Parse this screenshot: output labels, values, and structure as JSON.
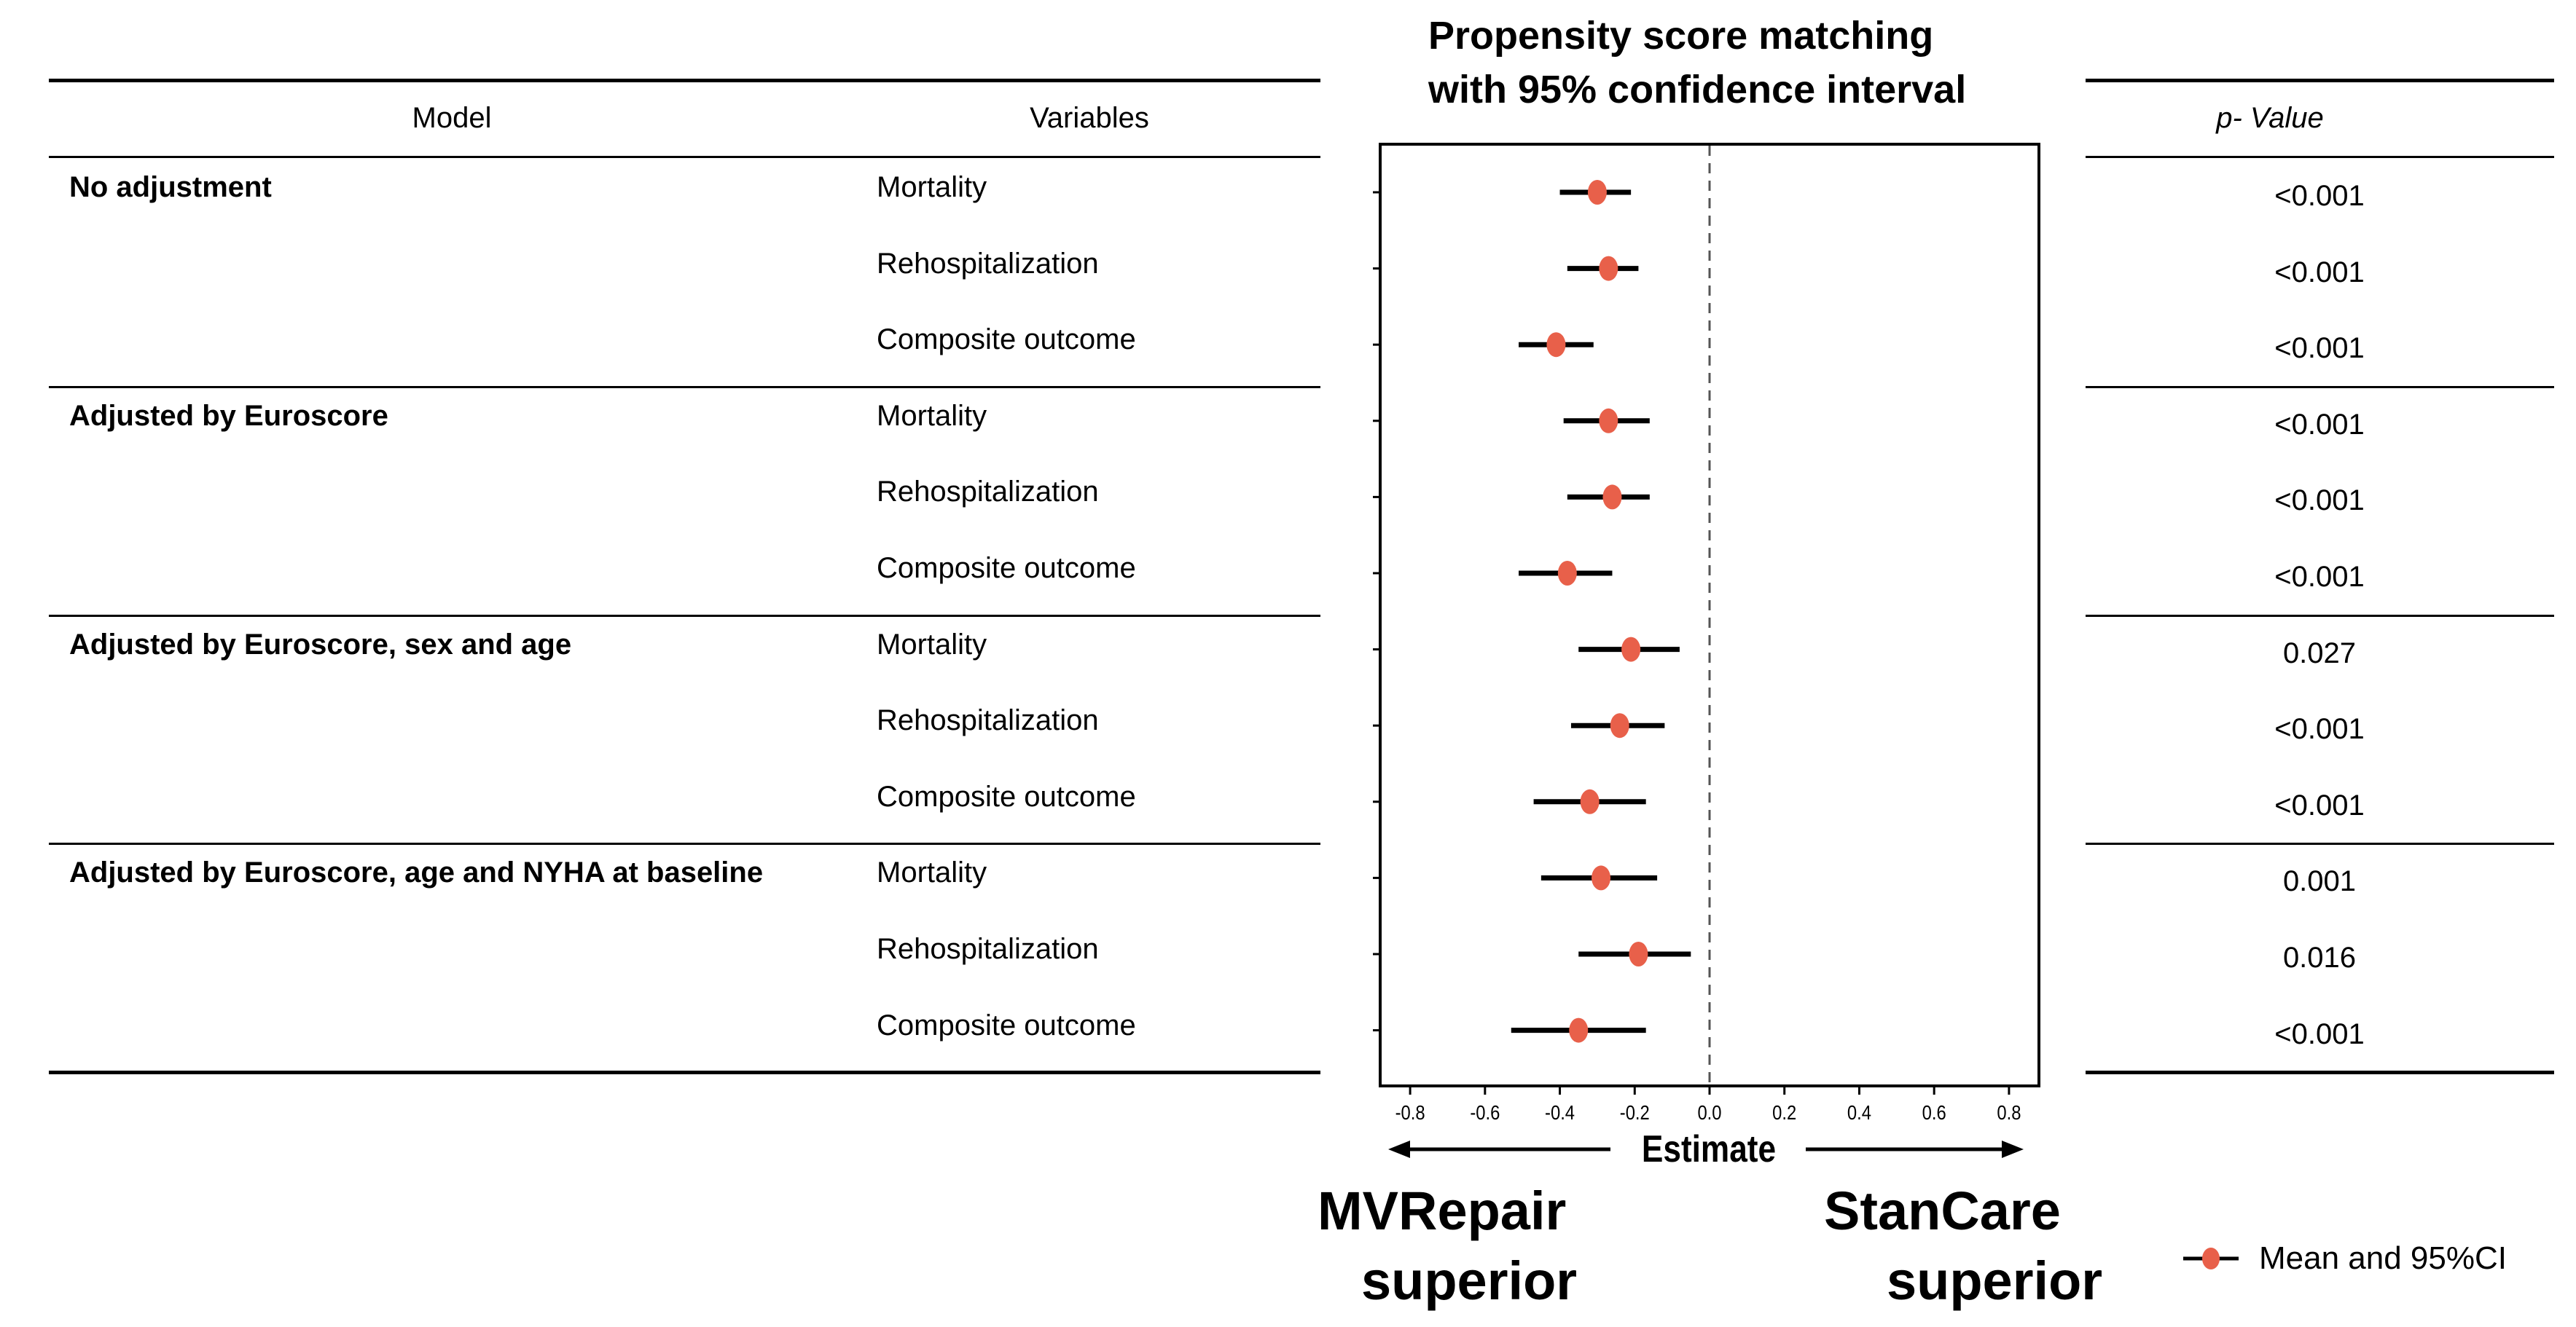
{
  "table": {
    "model_header": "Model",
    "variables_header": "Variables",
    "pvalue_header": "p- Value",
    "groups": [
      {
        "model": "No adjustment",
        "rows": [
          {
            "variable": "Mortality",
            "p": "<0.001"
          },
          {
            "variable": "Rehospitalization",
            "p": "<0.001"
          },
          {
            "variable": "Composite outcome",
            "p": "<0.001"
          }
        ]
      },
      {
        "model": "Adjusted by Euroscore",
        "rows": [
          {
            "variable": "Mortality",
            "p": "<0.001"
          },
          {
            "variable": "Rehospitalization",
            "p": "<0.001"
          },
          {
            "variable": "Composite outcome",
            "p": "<0.001"
          }
        ]
      },
      {
        "model": "Adjusted by Euroscore, sex and age",
        "rows": [
          {
            "variable": "Mortality",
            "p": "0.027"
          },
          {
            "variable": "Rehospitalization",
            "p": "<0.001"
          },
          {
            "variable": "Composite outcome",
            "p": "<0.001"
          }
        ]
      },
      {
        "model": "Adjusted by Euroscore, age and NYHA at baseline",
        "rows": [
          {
            "variable": "Mortality",
            "p": "0.001"
          },
          {
            "variable": "Rehospitalization",
            "p": "0.016"
          },
          {
            "variable": "Composite outcome",
            "p": "<0.001"
          }
        ]
      }
    ]
  },
  "chart_data": {
    "type": "scatter",
    "title_line1": "Propensity score matching",
    "title_line2": "with 95% confidence interval",
    "xlabel": "Estimate",
    "xlim": [
      -0.88,
      0.88
    ],
    "xticks": [
      -0.8,
      -0.6,
      -0.4,
      -0.2,
      0.0,
      0.2,
      0.4,
      0.6,
      0.8
    ],
    "xtick_labels": [
      "-0.8",
      "-0.6",
      "-0.4",
      "-0.2",
      "0.0",
      "0.2",
      "0.4",
      "0.6",
      "0.8"
    ],
    "reference_line": 0.0,
    "legend": {
      "label": "Mean and 95%CI",
      "position": "bottom-right"
    },
    "left_annotation": [
      "MVRepair",
      "superior"
    ],
    "right_annotation": [
      "StanCare",
      "superior"
    ],
    "colors": {
      "point": "#e8604a",
      "line": "#000000",
      "reference": "#555555"
    },
    "points": [
      {
        "estimate": -0.3,
        "lower": -0.4,
        "upper": -0.21
      },
      {
        "estimate": -0.27,
        "lower": -0.38,
        "upper": -0.19
      },
      {
        "estimate": -0.41,
        "lower": -0.51,
        "upper": -0.31
      },
      {
        "estimate": -0.27,
        "lower": -0.39,
        "upper": -0.16
      },
      {
        "estimate": -0.26,
        "lower": -0.38,
        "upper": -0.16
      },
      {
        "estimate": -0.38,
        "lower": -0.51,
        "upper": -0.26
      },
      {
        "estimate": -0.21,
        "lower": -0.35,
        "upper": -0.08
      },
      {
        "estimate": -0.24,
        "lower": -0.37,
        "upper": -0.12
      },
      {
        "estimate": -0.32,
        "lower": -0.47,
        "upper": -0.17
      },
      {
        "estimate": -0.29,
        "lower": -0.45,
        "upper": -0.14
      },
      {
        "estimate": -0.19,
        "lower": -0.35,
        "upper": -0.05
      },
      {
        "estimate": -0.35,
        "lower": -0.53,
        "upper": -0.17
      }
    ]
  }
}
